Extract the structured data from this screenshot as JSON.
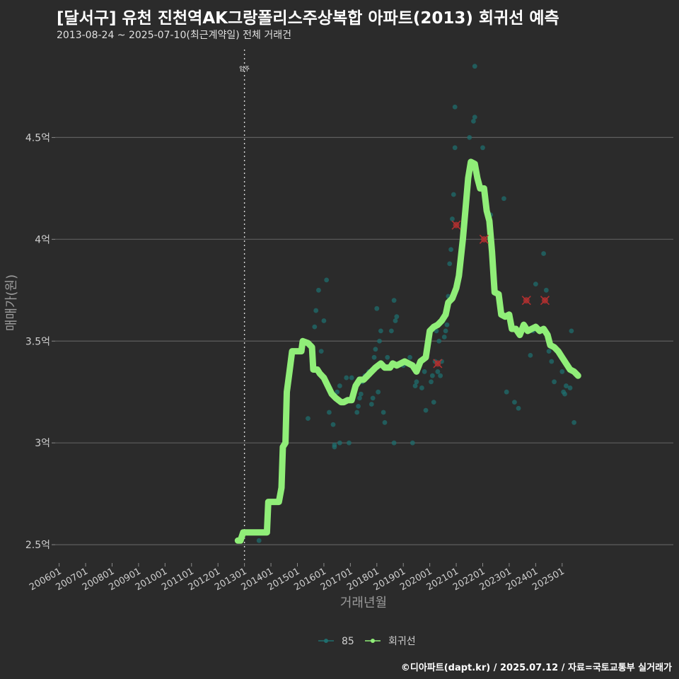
{
  "title": "[달서구] 유천 진천역AK그랑폴리스주상복합 아파트(2013) 회귀선 예측",
  "subtitle": "2013-08-24 ~ 2025-07-10(최근계약일) 전체 거래건",
  "caption": "©디아파트(dapt.kr) / 2025.07.12 / 자료=국토교통부 실거래가",
  "colors": {
    "background": "#2b2b2b",
    "scatter": "#1f6e6e",
    "regression": "#90ee78",
    "cancelled": "#b03030",
    "grid": "#5e5e5e"
  },
  "chart_data": {
    "type": "scatter",
    "xlabel": "거래년월",
    "ylabel": "매매가(원)",
    "x_range": [
      2005.85,
      2029.2
    ],
    "ylim": [
      2.41,
      4.96
    ],
    "y_ticks": [
      {
        "value": 2.5,
        "label": "2.5억"
      },
      {
        "value": 3.0,
        "label": "3억"
      },
      {
        "value": 3.5,
        "label": "3.5억"
      },
      {
        "value": 4.0,
        "label": "4억"
      },
      {
        "value": 4.5,
        "label": "4.5억"
      }
    ],
    "x_ticks": [
      {
        "value": 2006,
        "label": "200601"
      },
      {
        "value": 2007,
        "label": "200701"
      },
      {
        "value": 2008,
        "label": "200801"
      },
      {
        "value": 2009,
        "label": "200901"
      },
      {
        "value": 2010,
        "label": "201001"
      },
      {
        "value": 2011,
        "label": "201101"
      },
      {
        "value": 2012,
        "label": "201201"
      },
      {
        "value": 2013,
        "label": "201301"
      },
      {
        "value": 2014,
        "label": "201401"
      },
      {
        "value": 2015,
        "label": "201501"
      },
      {
        "value": 2016,
        "label": "201601"
      },
      {
        "value": 2017,
        "label": "201701"
      },
      {
        "value": 2018,
        "label": "201801"
      },
      {
        "value": 2019,
        "label": "201901"
      },
      {
        "value": 2020,
        "label": "202001"
      },
      {
        "value": 2021,
        "label": "202101"
      },
      {
        "value": 2022,
        "label": "202201"
      },
      {
        "value": 2023,
        "label": "202301"
      },
      {
        "value": 2024,
        "label": "202401"
      },
      {
        "value": 2025,
        "label": "202501"
      }
    ],
    "annotation": {
      "x": 2013.0,
      "label": "입주"
    },
    "legend": {
      "position": "bottom",
      "items": [
        {
          "name": "85",
          "color": "#1f6e6e"
        },
        {
          "name": "회귀선",
          "color": "#90ee78"
        }
      ]
    },
    "series": [
      {
        "name": "85",
        "points": [
          [
            2013.55,
            2.52
          ],
          [
            2015.4,
            3.12
          ],
          [
            2015.55,
            3.4
          ],
          [
            2015.65,
            3.57
          ],
          [
            2015.7,
            3.65
          ],
          [
            2015.8,
            3.75
          ],
          [
            2015.9,
            3.45
          ],
          [
            2016.0,
            3.6
          ],
          [
            2016.1,
            3.8
          ],
          [
            2016.2,
            3.15
          ],
          [
            2016.35,
            3.09
          ],
          [
            2016.4,
            2.99
          ],
          [
            2016.4,
            2.98
          ],
          [
            2016.5,
            3.25
          ],
          [
            2016.6,
            3.28
          ],
          [
            2016.6,
            3.0
          ],
          [
            2016.85,
            3.32
          ],
          [
            2016.95,
            3.0
          ],
          [
            2017.05,
            3.32
          ],
          [
            2017.15,
            3.25
          ],
          [
            2017.25,
            3.15
          ],
          [
            2017.3,
            3.18
          ],
          [
            2017.35,
            3.22
          ],
          [
            2017.4,
            3.24
          ],
          [
            2017.45,
            3.3
          ],
          [
            2017.55,
            3.33
          ],
          [
            2017.7,
            3.35
          ],
          [
            2017.8,
            3.19
          ],
          [
            2017.85,
            3.22
          ],
          [
            2017.9,
            3.42
          ],
          [
            2017.95,
            3.46
          ],
          [
            2018.0,
            3.66
          ],
          [
            2018.05,
            3.25
          ],
          [
            2018.1,
            3.5
          ],
          [
            2018.15,
            3.55
          ],
          [
            2018.25,
            3.15
          ],
          [
            2018.3,
            3.1
          ],
          [
            2018.4,
            3.42
          ],
          [
            2018.55,
            3.55
          ],
          [
            2018.65,
            3.7
          ],
          [
            2018.7,
            3.6
          ],
          [
            2018.75,
            3.62
          ],
          [
            2018.65,
            3.0
          ],
          [
            2019.0,
            3.38
          ],
          [
            2019.1,
            3.4
          ],
          [
            2019.25,
            3.42
          ],
          [
            2019.35,
            3.0
          ],
          [
            2019.45,
            3.28
          ],
          [
            2019.5,
            3.3
          ],
          [
            2019.6,
            3.38
          ],
          [
            2019.7,
            3.27
          ],
          [
            2019.8,
            3.35
          ],
          [
            2019.85,
            3.16
          ],
          [
            2019.9,
            3.45
          ],
          [
            2020.0,
            3.55
          ],
          [
            2020.05,
            3.3
          ],
          [
            2020.1,
            3.33
          ],
          [
            2020.15,
            3.2
          ],
          [
            2020.2,
            3.4
          ],
          [
            2020.25,
            3.55
          ],
          [
            2020.3,
            3.35
          ],
          [
            2020.35,
            3.5
          ],
          [
            2020.4,
            3.33
          ],
          [
            2020.45,
            3.4
          ],
          [
            2020.5,
            3.6
          ],
          [
            2020.55,
            3.52
          ],
          [
            2020.6,
            3.55
          ],
          [
            2020.65,
            3.58
          ],
          [
            2020.7,
            3.72
          ],
          [
            2020.75,
            3.88
          ],
          [
            2020.8,
            3.95
          ],
          [
            2020.85,
            4.1
          ],
          [
            2020.9,
            4.22
          ],
          [
            2020.95,
            4.45
          ],
          [
            2020.95,
            4.65
          ],
          [
            2021.5,
            4.5
          ],
          [
            2021.65,
            4.58
          ],
          [
            2021.7,
            4.6
          ],
          [
            2021.7,
            4.85
          ],
          [
            2022.0,
            4.45
          ],
          [
            2022.3,
            4.12
          ],
          [
            2022.4,
            3.88
          ],
          [
            2022.8,
            4.2
          ],
          [
            2022.9,
            3.25
          ],
          [
            2023.2,
            3.2
          ],
          [
            2023.35,
            3.17
          ],
          [
            2023.6,
            3.57
          ],
          [
            2023.8,
            3.43
          ],
          [
            2023.9,
            3.55
          ],
          [
            2024.0,
            3.78
          ],
          [
            2024.3,
            3.93
          ],
          [
            2024.4,
            3.75
          ],
          [
            2024.5,
            3.45
          ],
          [
            2024.6,
            3.4
          ],
          [
            2024.7,
            3.3
          ],
          [
            2024.8,
            3.45
          ],
          [
            2025.0,
            3.35
          ],
          [
            2025.05,
            3.25
          ],
          [
            2025.1,
            3.24
          ],
          [
            2025.15,
            3.28
          ],
          [
            2025.3,
            3.27
          ],
          [
            2025.35,
            3.55
          ],
          [
            2025.45,
            3.1
          ]
        ]
      },
      {
        "name": "회귀선",
        "points": [
          [
            2012.75,
            2.52
          ],
          [
            2012.85,
            2.52
          ],
          [
            2012.95,
            2.56
          ],
          [
            2013.1,
            2.56
          ],
          [
            2013.3,
            2.56
          ],
          [
            2013.5,
            2.56
          ],
          [
            2013.65,
            2.56
          ],
          [
            2013.85,
            2.56
          ],
          [
            2013.9,
            2.71
          ],
          [
            2014.0,
            2.71
          ],
          [
            2014.3,
            2.71
          ],
          [
            2014.4,
            2.78
          ],
          [
            2014.45,
            2.98
          ],
          [
            2014.55,
            3.0
          ],
          [
            2014.6,
            3.25
          ],
          [
            2014.7,
            3.35
          ],
          [
            2014.8,
            3.45
          ],
          [
            2015.0,
            3.45
          ],
          [
            2015.15,
            3.45
          ],
          [
            2015.2,
            3.5
          ],
          [
            2015.4,
            3.49
          ],
          [
            2015.55,
            3.47
          ],
          [
            2015.6,
            3.36
          ],
          [
            2015.75,
            3.36
          ],
          [
            2015.85,
            3.34
          ],
          [
            2016.0,
            3.32
          ],
          [
            2016.15,
            3.28
          ],
          [
            2016.3,
            3.24
          ],
          [
            2016.45,
            3.22
          ],
          [
            2016.65,
            3.2
          ],
          [
            2016.75,
            3.2
          ],
          [
            2016.9,
            3.21
          ],
          [
            2017.05,
            3.21
          ],
          [
            2017.2,
            3.28
          ],
          [
            2017.35,
            3.31
          ],
          [
            2017.5,
            3.31
          ],
          [
            2017.65,
            3.33
          ],
          [
            2017.8,
            3.35
          ],
          [
            2017.95,
            3.37
          ],
          [
            2018.15,
            3.39
          ],
          [
            2018.3,
            3.37
          ],
          [
            2018.5,
            3.37
          ],
          [
            2018.6,
            3.39
          ],
          [
            2018.75,
            3.38
          ],
          [
            2018.9,
            3.39
          ],
          [
            2019.05,
            3.4
          ],
          [
            2019.2,
            3.39
          ],
          [
            2019.35,
            3.38
          ],
          [
            2019.5,
            3.35
          ],
          [
            2019.65,
            3.4
          ],
          [
            2019.85,
            3.42
          ],
          [
            2020.0,
            3.55
          ],
          [
            2020.15,
            3.57
          ],
          [
            2020.3,
            3.58
          ],
          [
            2020.45,
            3.6
          ],
          [
            2020.6,
            3.63
          ],
          [
            2020.7,
            3.69
          ],
          [
            2020.85,
            3.71
          ],
          [
            2021.0,
            3.76
          ],
          [
            2021.1,
            3.82
          ],
          [
            2021.25,
            4.0
          ],
          [
            2021.35,
            4.15
          ],
          [
            2021.45,
            4.3
          ],
          [
            2021.55,
            4.38
          ],
          [
            2021.7,
            4.37
          ],
          [
            2021.8,
            4.3
          ],
          [
            2021.9,
            4.25
          ],
          [
            2022.05,
            4.25
          ],
          [
            2022.15,
            4.14
          ],
          [
            2022.25,
            4.09
          ],
          [
            2022.35,
            3.94
          ],
          [
            2022.45,
            3.74
          ],
          [
            2022.6,
            3.73
          ],
          [
            2022.7,
            3.63
          ],
          [
            2022.85,
            3.62
          ],
          [
            2023.0,
            3.63
          ],
          [
            2023.1,
            3.56
          ],
          [
            2023.25,
            3.56
          ],
          [
            2023.4,
            3.53
          ],
          [
            2023.55,
            3.58
          ],
          [
            2023.7,
            3.55
          ],
          [
            2023.85,
            3.56
          ],
          [
            2024.0,
            3.57
          ],
          [
            2024.15,
            3.55
          ],
          [
            2024.3,
            3.56
          ],
          [
            2024.45,
            3.53
          ],
          [
            2024.55,
            3.48
          ],
          [
            2024.7,
            3.47
          ],
          [
            2024.85,
            3.45
          ],
          [
            2025.0,
            3.42
          ],
          [
            2025.15,
            3.39
          ],
          [
            2025.3,
            3.36
          ],
          [
            2025.45,
            3.35
          ],
          [
            2025.6,
            3.33
          ]
        ]
      }
    ],
    "cancelled_points": [
      [
        2020.3,
        3.39
      ],
      [
        2021.0,
        4.07
      ],
      [
        2022.05,
        4.0
      ],
      [
        2023.65,
        3.7
      ],
      [
        2024.35,
        3.7
      ]
    ]
  }
}
